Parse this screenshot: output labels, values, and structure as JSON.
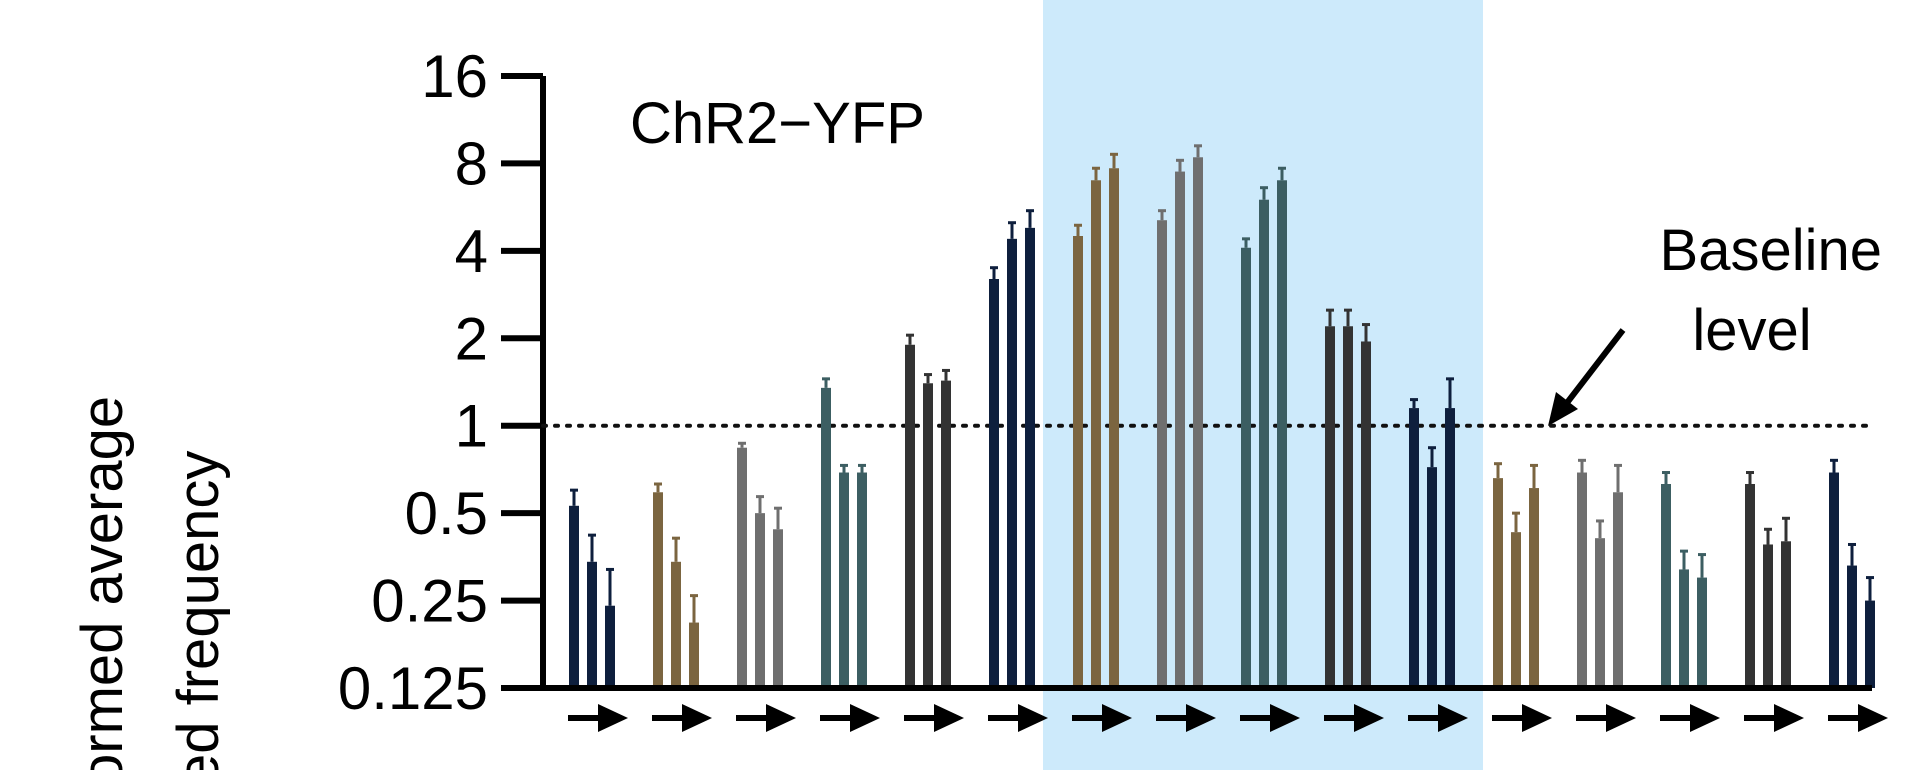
{
  "chart_data": {
    "type": "bar",
    "title": "ChR2−YFP",
    "ylabel_lines": [
      "ormed average",
      "ed frequency"
    ],
    "yscale": "log2",
    "ylim": [
      0.125,
      16
    ],
    "yticks": [
      "16",
      "8",
      "4",
      "2",
      "1",
      "0.5",
      "0.25",
      "0.125"
    ],
    "baseline": {
      "value": 1,
      "label_lines": [
        "Baseline",
        "level"
      ]
    },
    "highlight_groups": [
      6,
      10
    ],
    "colors": {
      "navy": "#0e1f3d",
      "brown": "#7b6540",
      "gray": "#6f6f6f",
      "teal": "#3c5e62",
      "dark": "#333333",
      "highlight": "#cdeafb"
    },
    "groups": [
      {
        "color": "navy",
        "values": [
          0.53,
          0.34,
          0.24
        ],
        "errors": [
          0.07,
          0.08,
          0.08
        ]
      },
      {
        "color": "brown",
        "values": [
          0.59,
          0.34,
          0.21
        ],
        "errors": [
          0.04,
          0.07,
          0.05
        ]
      },
      {
        "color": "gray",
        "values": [
          0.84,
          0.5,
          0.44
        ],
        "errors": [
          0.03,
          0.07,
          0.08
        ]
      },
      {
        "color": "teal",
        "values": [
          1.35,
          0.69,
          0.69
        ],
        "errors": [
          0.1,
          0.04,
          0.04
        ]
      },
      {
        "color": "dark",
        "values": [
          1.9,
          1.4,
          1.43
        ],
        "errors": [
          0.15,
          0.1,
          0.12
        ]
      },
      {
        "color": "navy",
        "values": [
          3.2,
          4.4,
          4.8
        ],
        "errors": [
          0.3,
          0.6,
          0.7
        ]
      },
      {
        "color": "brown",
        "values": [
          4.5,
          7.0,
          7.7
        ],
        "errors": [
          0.4,
          0.7,
          0.9
        ]
      },
      {
        "color": "gray",
        "values": [
          5.1,
          7.5,
          8.4
        ],
        "errors": [
          0.4,
          0.7,
          0.8
        ]
      },
      {
        "color": "teal",
        "values": [
          4.1,
          6.0,
          7.0
        ],
        "errors": [
          0.3,
          0.6,
          0.7
        ]
      },
      {
        "color": "dark",
        "values": [
          2.2,
          2.2,
          1.95
        ],
        "errors": [
          0.3,
          0.3,
          0.28
        ]
      },
      {
        "color": "navy",
        "values": [
          1.15,
          0.72,
          1.15
        ],
        "errors": [
          0.08,
          0.12,
          0.3
        ]
      },
      {
        "color": "brown",
        "values": [
          0.66,
          0.43,
          0.61
        ],
        "errors": [
          0.08,
          0.07,
          0.12
        ]
      },
      {
        "color": "gray",
        "values": [
          0.69,
          0.41,
          0.59
        ],
        "errors": [
          0.07,
          0.06,
          0.14
        ]
      },
      {
        "color": "teal",
        "values": [
          0.63,
          0.32,
          0.3
        ],
        "errors": [
          0.06,
          0.05,
          0.06
        ]
      },
      {
        "color": "dark",
        "values": [
          0.63,
          0.39,
          0.4
        ],
        "errors": [
          0.06,
          0.05,
          0.08
        ]
      },
      {
        "color": "navy",
        "values": [
          0.69,
          0.33,
          0.25
        ],
        "errors": [
          0.07,
          0.06,
          0.05
        ]
      }
    ]
  }
}
